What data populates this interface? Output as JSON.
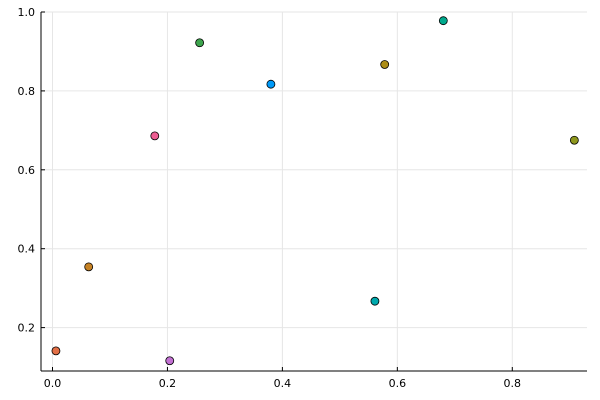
{
  "chart_data": {
    "type": "scatter",
    "title": "",
    "xlabel": "",
    "ylabel": "",
    "grid": true,
    "legend": "none",
    "xlim": [
      -0.02,
      0.93
    ],
    "ylim": [
      0.09,
      1.0
    ],
    "x_ticks": [
      {
        "value": 0.0,
        "label": "0.0"
      },
      {
        "value": 0.2,
        "label": "0.2"
      },
      {
        "value": 0.4,
        "label": "0.4"
      },
      {
        "value": 0.6,
        "label": "0.6"
      },
      {
        "value": 0.8,
        "label": "0.8"
      }
    ],
    "y_ticks": [
      {
        "value": 0.2,
        "label": "0.2"
      },
      {
        "value": 0.4,
        "label": "0.4"
      },
      {
        "value": 0.6,
        "label": "0.6"
      },
      {
        "value": 0.8,
        "label": "0.8"
      },
      {
        "value": 1.0,
        "label": "1.0"
      }
    ],
    "series": [
      {
        "x": [
          0.38
        ],
        "y": [
          0.817
        ],
        "color": "#009af9"
      },
      {
        "x": [
          0.006
        ],
        "y": [
          0.141
        ],
        "color": "#e26f46"
      },
      {
        "x": [
          0.256
        ],
        "y": [
          0.922
        ],
        "color": "#3da44d"
      },
      {
        "x": [
          0.204
        ],
        "y": [
          0.116
        ],
        "color": "#c271d2"
      },
      {
        "x": [
          0.578
        ],
        "y": [
          0.867
        ],
        "color": "#ac8d18"
      },
      {
        "x": [
          0.561
        ],
        "y": [
          0.267
        ],
        "color": "#00a9ad"
      },
      {
        "x": [
          0.178
        ],
        "y": [
          0.686
        ],
        "color": "#ed5d92"
      },
      {
        "x": [
          0.063
        ],
        "y": [
          0.354
        ],
        "color": "#c68225"
      },
      {
        "x": [
          0.68
        ],
        "y": [
          0.978
        ],
        "color": "#00a98d"
      },
      {
        "x": [
          0.908
        ],
        "y": [
          0.675
        ],
        "color": "#8e971d"
      }
    ]
  }
}
